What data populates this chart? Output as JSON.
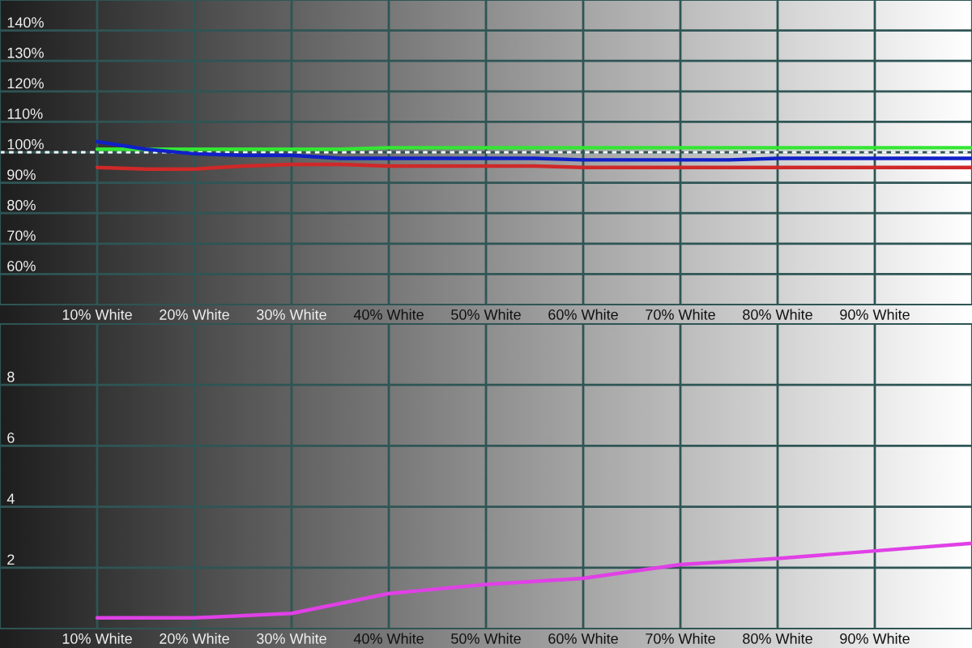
{
  "chart_data": [
    {
      "type": "line",
      "x": [
        10,
        15,
        20,
        25,
        30,
        35,
        40,
        45,
        50,
        55,
        60,
        65,
        70,
        75,
        80,
        85,
        90,
        95,
        100
      ],
      "series": [
        {
          "color": "#d02828",
          "values": [
            95,
            94.5,
            94.5,
            95.5,
            96,
            96,
            95.5,
            95.5,
            95.5,
            95.5,
            95,
            95,
            95,
            95,
            95,
            95,
            95,
            95,
            95
          ]
        },
        {
          "color": "#33e633",
          "values": [
            101,
            101,
            101,
            101,
            101,
            101,
            101.5,
            101.5,
            101.5,
            101.5,
            101.5,
            101.5,
            101.5,
            101.5,
            101.5,
            101.5,
            101.5,
            101.5,
            101.5
          ]
        },
        {
          "color": "#1020c8",
          "values": [
            103.5,
            101,
            99.5,
            99,
            99,
            98,
            98,
            98,
            98,
            98,
            97.5,
            97.5,
            97.5,
            97.5,
            98,
            98,
            98,
            98,
            98
          ]
        }
      ],
      "xlim": [
        0,
        100
      ],
      "xticks": [
        {
          "value": 10,
          "label": "10% White"
        },
        {
          "value": 20,
          "label": "20% White"
        },
        {
          "value": 30,
          "label": "30% White"
        },
        {
          "value": 40,
          "label": "40% White"
        },
        {
          "value": 50,
          "label": "50% White"
        },
        {
          "value": 60,
          "label": "60% White"
        },
        {
          "value": 70,
          "label": "70% White"
        },
        {
          "value": 80,
          "label": "80% White"
        },
        {
          "value": 90,
          "label": "90% White"
        }
      ],
      "ylim": [
        50,
        150
      ],
      "yticks": [
        {
          "value": 60,
          "label": "60%"
        },
        {
          "value": 70,
          "label": "70%"
        },
        {
          "value": 80,
          "label": "80%"
        },
        {
          "value": 90,
          "label": "90%"
        },
        {
          "value": 100,
          "label": "100%"
        },
        {
          "value": 110,
          "label": "110%"
        },
        {
          "value": 120,
          "label": "120%"
        },
        {
          "value": 130,
          "label": "130%"
        },
        {
          "value": 140,
          "label": "140%"
        }
      ],
      "ref_lines": [
        {
          "axis": "y",
          "value": 100,
          "color": "#ffffff",
          "line_style": "dashed"
        }
      ],
      "grid": true
    },
    {
      "type": "line",
      "x": [
        10,
        20,
        30,
        40,
        50,
        60,
        70,
        80,
        90,
        100
      ],
      "series": [
        {
          "color": "#e040e6",
          "values": [
            0.35,
            0.35,
            0.5,
            1.15,
            1.45,
            1.65,
            2.1,
            2.3,
            2.55,
            2.8
          ]
        }
      ],
      "xlim": [
        0,
        100
      ],
      "xticks": [
        {
          "value": 10,
          "label": "10% White"
        },
        {
          "value": 20,
          "label": "20% White"
        },
        {
          "value": 30,
          "label": "30% White"
        },
        {
          "value": 40,
          "label": "40% White"
        },
        {
          "value": 50,
          "label": "50% White"
        },
        {
          "value": 60,
          "label": "60% White"
        },
        {
          "value": 70,
          "label": "70% White"
        },
        {
          "value": 80,
          "label": "80% White"
        },
        {
          "value": 90,
          "label": "90% White"
        }
      ],
      "ylim": [
        0,
        10
      ],
      "yticks": [
        2,
        4,
        6,
        8
      ],
      "grid": true
    }
  ]
}
